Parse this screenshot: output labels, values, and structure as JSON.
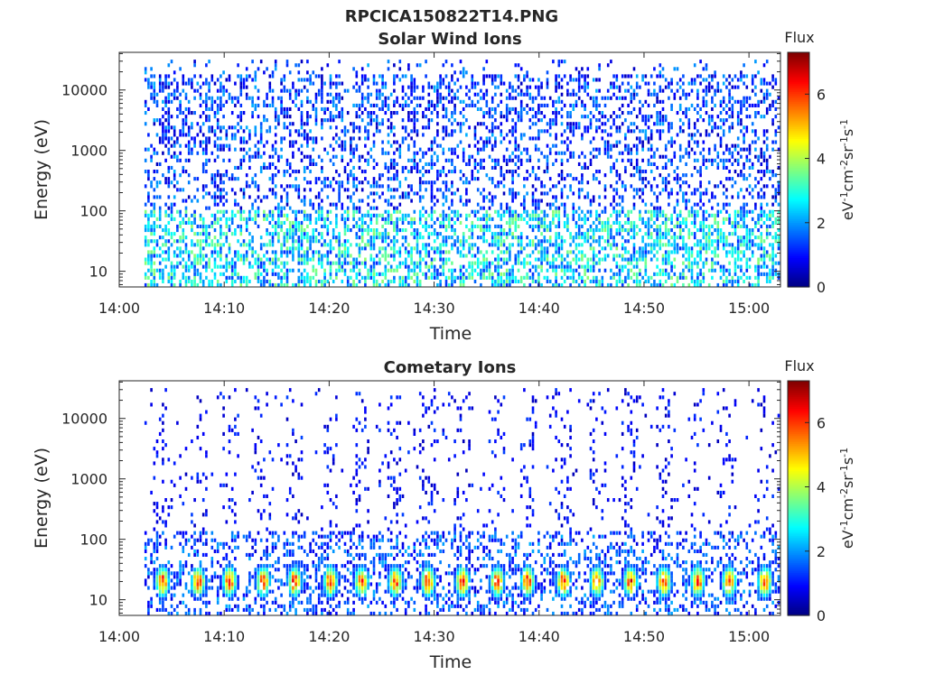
{
  "figure_title": "RPCICA150822T14.PNG",
  "colormap": [
    "#00007f",
    "#0000ff",
    "#007fff",
    "#00ffff",
    "#7fff7f",
    "#ffff00",
    "#ff7f00",
    "#ff0000",
    "#7f0000"
  ],
  "chart_data": [
    {
      "type": "heatmap",
      "title": "Solar Wind Ions",
      "xlabel": "Time",
      "ylabel": "Energy (eV)",
      "x_ticks": [
        "14:00",
        "14:10",
        "14:20",
        "14:30",
        "14:40",
        "14:50",
        "15:00"
      ],
      "x_range_minutes": [
        0,
        63
      ],
      "data_start_minutes": 2.4,
      "y_scale": "log",
      "y_ticks": [
        "10",
        "100",
        "1000",
        "10000"
      ],
      "y_range_eV": [
        5.5,
        42000
      ],
      "colorbar": {
        "label": "Flux",
        "unit": "eV-1cm-2sr-1s-1",
        "ticks": [
          "0",
          "2",
          "4",
          "6"
        ],
        "range": [
          0,
          7.3
        ]
      },
      "description_of_values": "Sparse scattered flux (~0.5–3) across all energies 5–30000 eV; higher density (2–4) below ~100 eV.",
      "grid": false
    },
    {
      "type": "heatmap",
      "title": "Cometary Ions",
      "xlabel": "Time",
      "ylabel": "Energy (eV)",
      "x_ticks": [
        "14:00",
        "14:10",
        "14:20",
        "14:30",
        "14:40",
        "14:50",
        "15:00"
      ],
      "x_range_minutes": [
        0,
        63
      ],
      "data_start_minutes": 2.4,
      "y_scale": "log",
      "y_ticks": [
        "10",
        "100",
        "1000",
        "10000"
      ],
      "y_range_eV": [
        5.5,
        42000
      ],
      "colorbar": {
        "label": "Flux",
        "unit": "eV-1cm-2sr-1s-1",
        "ticks": [
          "0",
          "2",
          "4",
          "6"
        ],
        "range": [
          0,
          7.3
        ]
      },
      "burst_times_minutes": [
        4.0,
        7.4,
        10.4,
        13.6,
        16.6,
        20.0,
        23.0,
        26.2,
        29.3,
        32.6,
        35.9,
        38.8,
        42.2,
        45.4,
        48.6,
        51.8,
        55.0,
        58.0,
        61.4
      ],
      "burst_peak_energy_eV": 20,
      "burst_peak_flux": 6.3,
      "grid": false
    }
  ]
}
